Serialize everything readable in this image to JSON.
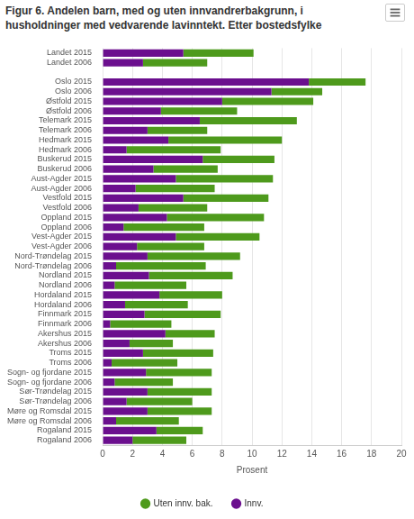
{
  "chart_data": {
    "type": "bar",
    "title": "Figur 6. Andelen barn, med og uten innvandrerbakgrunn, i husholdninger med vedvarende lavinntekt. Etter bostedsfylke",
    "orientation": "horizontal",
    "stacked": true,
    "grid": true,
    "legend": "bottom",
    "x_label": "Prosent",
    "xlim": [
      0,
      20
    ],
    "xticks": [
      0,
      2,
      4,
      6,
      8,
      10,
      12,
      14,
      16,
      18,
      20
    ],
    "categories": [
      "Landet 2015",
      "Landet 2006",
      null,
      "Oslo 2015",
      "Oslo 2006",
      "Østfold 2015",
      "Østfold 2006",
      "Telemark 2015",
      "Telemark 2006",
      "Hedmark 2015",
      "Hedmark 2006",
      "Buskerud 2015",
      "Buskerud 2006",
      "Aust-Agder 2015",
      "Aust-Agder 2006",
      "Vestfold 2015",
      "Vestfold 2006",
      "Oppland 2015",
      "Oppland 2006",
      "Vest-Agder 2015",
      "Vest-Agder 2006",
      "Nord-Trøndelag 2015",
      "Nord-Trøndelag 2006",
      "Nordland 2015",
      "Nordland 2006",
      "Hordaland 2015",
      "Hordaland 2006",
      "Finnmark 2015",
      "Finnmark 2006",
      "Akershus 2015",
      "Akershus 2006",
      "Troms 2015",
      "Troms 2006",
      "Sogn- og fjordane 2015",
      "Sogn- og fjordane 2006",
      "Sør-Trøndelag 2015",
      "Sør-Trøndelag 2006",
      "Møre og Romsdal 2015",
      "Møre og Romsdal 2006",
      "Rogaland 2015",
      "Rogaland 2006"
    ],
    "series": [
      {
        "name": "Innv.",
        "color": "#6b0f8e",
        "values": [
          5.4,
          2.7,
          null,
          13.8,
          11.3,
          8.0,
          3.9,
          6.5,
          3.0,
          4.4,
          1.6,
          6.7,
          3.4,
          4.9,
          2.2,
          5.4,
          2.4,
          4.3,
          1.4,
          4.9,
          2.3,
          3.0,
          0.9,
          3.1,
          0.8,
          3.8,
          1.5,
          2.8,
          0.5,
          4.2,
          1.8,
          2.7,
          0.6,
          2.9,
          0.8,
          3.0,
          1.6,
          3.0,
          0.9,
          3.6,
          2.0
        ]
      },
      {
        "name": "Uten innv. bak.",
        "color": "#4e9a1c",
        "values": [
          4.7,
          4.3,
          null,
          3.8,
          3.4,
          6.1,
          5.1,
          6.5,
          4.0,
          7.6,
          6.3,
          4.8,
          4.3,
          6.5,
          5.3,
          5.7,
          4.6,
          6.5,
          5.4,
          5.6,
          4.5,
          6.2,
          6.0,
          5.6,
          4.8,
          4.2,
          4.2,
          5.1,
          4.1,
          3.3,
          2.9,
          4.7,
          4.4,
          4.4,
          3.9,
          4.3,
          4.4,
          4.3,
          4.2,
          3.1,
          3.6
        ]
      }
    ]
  }
}
